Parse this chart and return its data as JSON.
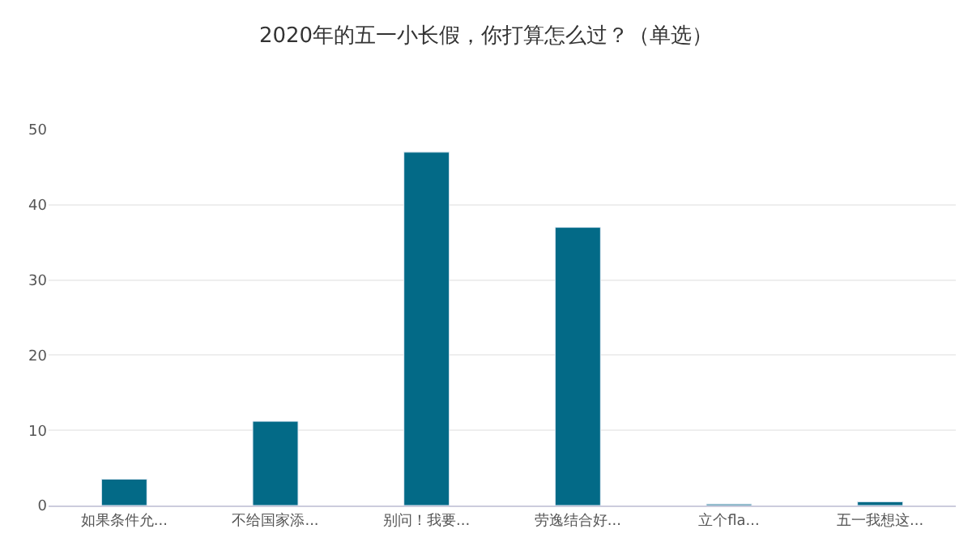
{
  "chart_data": {
    "type": "bar",
    "title": "2020年的五一小长假，你打算怎么过？（单选）",
    "categories": [
      "如果条件允...",
      "不给国家添...",
      "别问！我要...",
      "劳逸结合好...",
      "立个fla...",
      "五一我想这..."
    ],
    "values": [
      3.5,
      11.2,
      47,
      37,
      0.2,
      0.5
    ],
    "color": "#036a87",
    "ylim": [
      0,
      50
    ],
    "yticks": [
      0,
      10,
      20,
      30,
      40,
      50
    ],
    "grid": "y",
    "legend": false
  }
}
